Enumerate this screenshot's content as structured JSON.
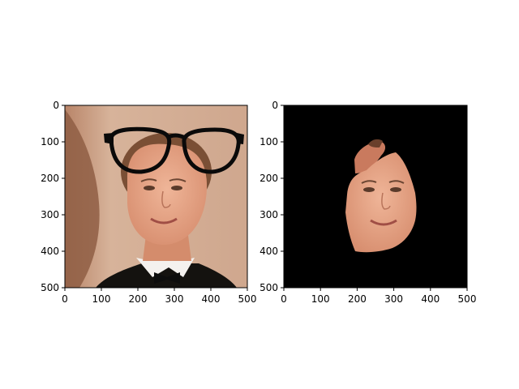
{
  "chart_data": [
    {
      "type": "image",
      "content": "portrait photo with black eyeglasses overlay",
      "xlim": [
        0,
        500
      ],
      "ylim": [
        500,
        0
      ],
      "xticks": [
        0,
        100,
        200,
        300,
        400,
        500
      ],
      "yticks": [
        0,
        100,
        200,
        300,
        400,
        500
      ],
      "x_tick_labels": [
        "0",
        "100",
        "200",
        "300",
        "400",
        "500"
      ],
      "y_tick_labels": [
        "0",
        "100",
        "200",
        "300",
        "400",
        "500"
      ],
      "y_inverted": true,
      "grid": false
    },
    {
      "type": "image",
      "content": "face region masked on black background",
      "xlim": [
        0,
        500
      ],
      "ylim": [
        500,
        0
      ],
      "xticks": [
        0,
        100,
        200,
        300,
        400,
        500
      ],
      "yticks": [
        0,
        100,
        200,
        300,
        400,
        500
      ],
      "x_tick_labels": [
        "0",
        "100",
        "200",
        "300",
        "400",
        "500"
      ],
      "y_tick_labels": [
        "0",
        "100",
        "200",
        "300",
        "400",
        "500"
      ],
      "y_inverted": true,
      "grid": false
    }
  ],
  "colors": {
    "background_wall": "#c9a48a",
    "skin": "#e9a98b",
    "hair": "#7a4f35",
    "suit": "#14120f",
    "shirt": "#f4f1ee",
    "glasses": "#0a0a0a",
    "mask": "#000000"
  }
}
